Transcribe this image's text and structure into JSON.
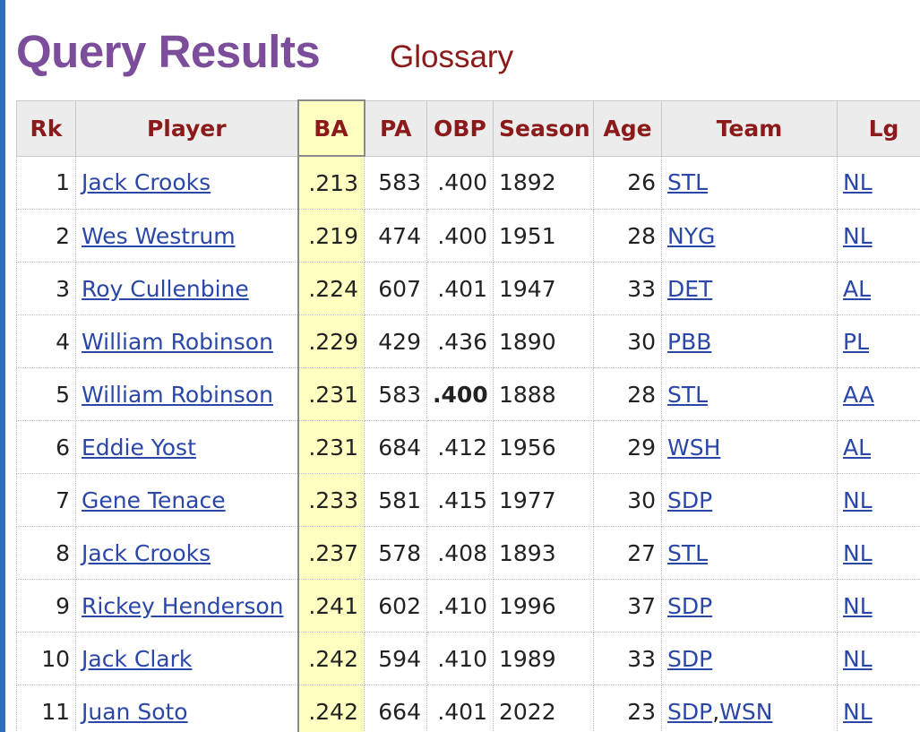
{
  "header": {
    "title": "Query Results",
    "glossary_label": "Glossary"
  },
  "table": {
    "columns": [
      "Rk",
      "Player",
      "BA",
      "PA",
      "OBP",
      "Season",
      "Age",
      "Team",
      "Lg"
    ],
    "rows": [
      {
        "rk": "1",
        "player": "Jack Crooks",
        "ba": ".213",
        "pa": "583",
        "obp": ".400",
        "season": "1892",
        "age": "26",
        "team": "STL",
        "lg": "NL"
      },
      {
        "rk": "2",
        "player": "Wes Westrum",
        "ba": ".219",
        "pa": "474",
        "obp": ".400",
        "season": "1951",
        "age": "28",
        "team": "NYG",
        "lg": "NL"
      },
      {
        "rk": "3",
        "player": "Roy Cullenbine",
        "ba": ".224",
        "pa": "607",
        "obp": ".401",
        "season": "1947",
        "age": "33",
        "team": "DET",
        "lg": "AL"
      },
      {
        "rk": "4",
        "player": "William Robinson",
        "ba": ".229",
        "pa": "429",
        "obp": ".436",
        "season": "1890",
        "age": "30",
        "team": "PBB",
        "lg": "PL"
      },
      {
        "rk": "5",
        "player": "William Robinson",
        "ba": ".231",
        "pa": "583",
        "obp": ".400",
        "obp_bold": true,
        "season": "1888",
        "age": "28",
        "team": "STL",
        "lg": "AA"
      },
      {
        "rk": "6",
        "player": "Eddie Yost",
        "ba": ".231",
        "pa": "684",
        "obp": ".412",
        "season": "1956",
        "age": "29",
        "team": "WSH",
        "lg": "AL"
      },
      {
        "rk": "7",
        "player": "Gene Tenace",
        "ba": ".233",
        "pa": "581",
        "obp": ".415",
        "season": "1977",
        "age": "30",
        "team": "SDP",
        "lg": "NL"
      },
      {
        "rk": "8",
        "player": "Jack Crooks",
        "ba": ".237",
        "pa": "578",
        "obp": ".408",
        "season": "1893",
        "age": "27",
        "team": "STL",
        "lg": "NL"
      },
      {
        "rk": "9",
        "player": "Rickey Henderson",
        "ba": ".241",
        "pa": "602",
        "obp": ".410",
        "season": "1996",
        "age": "37",
        "team": "SDP",
        "lg": "NL"
      },
      {
        "rk": "10",
        "player": "Jack Clark",
        "ba": ".242",
        "pa": "594",
        "obp": ".410",
        "season": "1989",
        "age": "33",
        "team": "SDP",
        "lg": "NL"
      },
      {
        "rk": "11",
        "player": "Juan Soto",
        "ba": ".242",
        "pa": "664",
        "obp": ".401",
        "season": "2022",
        "age": "23",
        "team": "SDP,WSN",
        "team_links": [
          "SDP",
          "WSN"
        ],
        "lg": "NL"
      }
    ]
  },
  "colors": {
    "title": "#7b4d9a",
    "header_text": "#8b1a1a",
    "link": "#2a47a8",
    "ba_highlight": "#ffffc2",
    "accent_bar": "#2f6fb5"
  }
}
